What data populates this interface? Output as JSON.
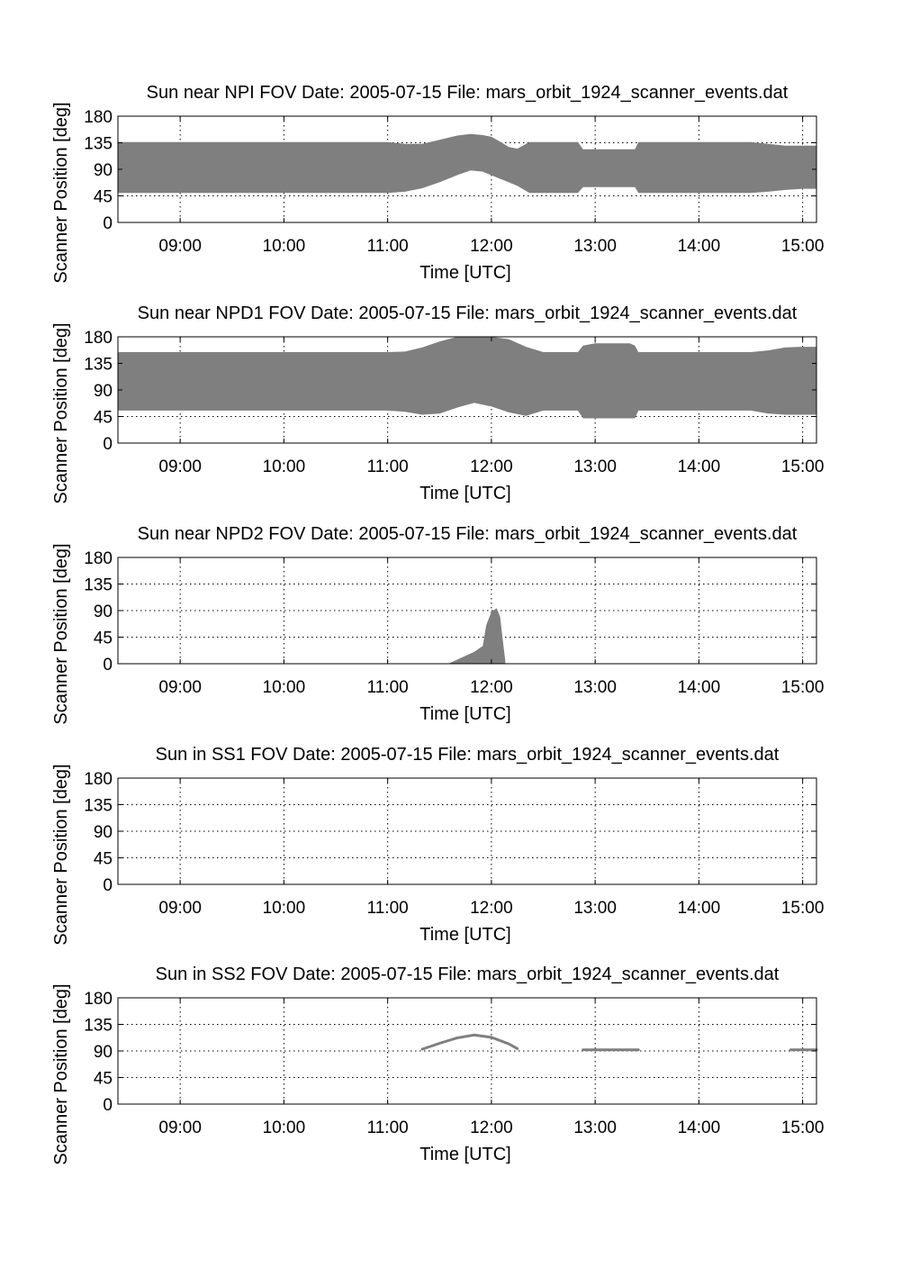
{
  "chart_data": [
    {
      "type": "area",
      "title": "Sun near NPI FOV   Date: 2005-07-15   File: mars_orbit_1924_scanner_events.dat",
      "xlabel": "Time [UTC]",
      "ylabel": "Scanner Position [deg]",
      "xlim": [
        "08:24",
        "15:08"
      ],
      "ylim": [
        0,
        180
      ],
      "xticks": [
        "09:00",
        "10:00",
        "11:00",
        "12:00",
        "13:00",
        "14:00",
        "15:00"
      ],
      "yticks": [
        "0",
        "45",
        "90",
        "135",
        "180"
      ],
      "grid": true,
      "color": "#7f7f7f",
      "series": [
        {
          "x": [
            "08:24",
            "11:00",
            "11:10",
            "11:20",
            "11:30",
            "11:40",
            "11:48",
            "11:55",
            "12:00",
            "12:05",
            "12:10",
            "12:15",
            "12:22",
            "12:30",
            "12:40",
            "12:50",
            "12:53",
            "13:00",
            "13:20",
            "13:23",
            "13:25",
            "13:30",
            "14:00",
            "14:30",
            "14:40",
            "14:50",
            "15:00",
            "15:08"
          ],
          "low": [
            50,
            50,
            52,
            58,
            68,
            80,
            88,
            86,
            80,
            74,
            68,
            62,
            50,
            50,
            50,
            50,
            60,
            60,
            60,
            60,
            50,
            50,
            50,
            50,
            52,
            55,
            57,
            57
          ],
          "high": [
            136,
            136,
            133,
            133,
            140,
            147,
            150,
            148,
            145,
            137,
            128,
            125,
            136,
            136,
            136,
            136,
            124,
            124,
            124,
            124,
            136,
            136,
            136,
            136,
            133,
            130,
            130,
            130
          ]
        }
      ]
    },
    {
      "type": "area",
      "title": "Sun near NPD1 FOV   Date: 2005-07-15   File: mars_orbit_1924_scanner_events.dat",
      "xlabel": "Time [UTC]",
      "ylabel": "Scanner Position [deg]",
      "xlim": [
        "08:24",
        "15:08"
      ],
      "ylim": [
        0,
        180
      ],
      "xticks": [
        "09:00",
        "10:00",
        "11:00",
        "12:00",
        "13:00",
        "14:00",
        "15:00"
      ],
      "yticks": [
        "0",
        "45",
        "90",
        "135",
        "180"
      ],
      "grid": true,
      "color": "#7f7f7f",
      "series": [
        {
          "x": [
            "08:24",
            "11:00",
            "11:10",
            "11:20",
            "11:30",
            "11:40",
            "11:50",
            "12:00",
            "12:10",
            "12:20",
            "12:30",
            "12:40",
            "12:50",
            "12:53",
            "13:00",
            "13:20",
            "13:23",
            "13:25",
            "13:30",
            "14:00",
            "14:30",
            "14:40",
            "14:50",
            "15:00",
            "15:08"
          ],
          "low": [
            55,
            55,
            53,
            48,
            50,
            60,
            68,
            62,
            52,
            46,
            55,
            55,
            55,
            42,
            42,
            42,
            42,
            55,
            55,
            55,
            55,
            50,
            48,
            48,
            48
          ],
          "high": [
            154,
            154,
            155,
            162,
            172,
            180,
            180,
            180,
            176,
            163,
            154,
            154,
            154,
            165,
            169,
            169,
            165,
            154,
            154,
            154,
            154,
            157,
            162,
            163,
            163
          ]
        }
      ]
    },
    {
      "type": "area",
      "title": "Sun near NPD2 FOV   Date: 2005-07-15   File: mars_orbit_1924_scanner_events.dat",
      "xlabel": "Time [UTC]",
      "ylabel": "Scanner Position [deg]",
      "xlim": [
        "08:24",
        "15:08"
      ],
      "ylim": [
        0,
        180
      ],
      "xticks": [
        "09:00",
        "10:00",
        "11:00",
        "12:00",
        "13:00",
        "14:00",
        "15:00"
      ],
      "yticks": [
        "0",
        "45",
        "90",
        "135",
        "180"
      ],
      "grid": true,
      "color": "#7f7f7f",
      "series": [
        {
          "x": [
            "11:35",
            "11:50",
            "11:55",
            "11:57",
            "12:00",
            "12:03",
            "12:05",
            "12:07",
            "12:08",
            "12:08"
          ],
          "low": [
            0,
            0,
            0,
            0,
            0,
            0,
            0,
            0,
            0,
            0
          ],
          "high": [
            0,
            20,
            30,
            65,
            88,
            94,
            80,
            30,
            5,
            0
          ]
        }
      ]
    },
    {
      "type": "area",
      "title": "Sun in SS1 FOV   Date: 2005-07-15   File: mars_orbit_1924_scanner_events.dat",
      "xlabel": "Time [UTC]",
      "ylabel": "Scanner Position [deg]",
      "xlim": [
        "08:24",
        "15:08"
      ],
      "ylim": [
        0,
        180
      ],
      "xticks": [
        "09:00",
        "10:00",
        "11:00",
        "12:00",
        "13:00",
        "14:00",
        "15:00"
      ],
      "yticks": [
        "0",
        "45",
        "90",
        "135",
        "180"
      ],
      "grid": true,
      "color": "#7f7f7f",
      "series": []
    },
    {
      "type": "line",
      "title": "Sun in SS2 FOV   Date: 2005-07-15   File: mars_orbit_1924_scanner_events.dat",
      "xlabel": "Time [UTC]",
      "ylabel": "Scanner Position [deg]",
      "xlim": [
        "08:24",
        "15:08"
      ],
      "ylim": [
        0,
        180
      ],
      "xticks": [
        "09:00",
        "10:00",
        "11:00",
        "12:00",
        "13:00",
        "14:00",
        "15:00"
      ],
      "yticks": [
        "0",
        "45",
        "90",
        "135",
        "180"
      ],
      "grid": true,
      "color": "#7f7f7f",
      "series": [
        {
          "x": [
            "11:20",
            "11:30",
            "11:40",
            "11:50",
            "12:00",
            "12:10",
            "12:15"
          ],
          "y": [
            93,
            103,
            112,
            117,
            113,
            102,
            94
          ]
        },
        {
          "x": [
            "12:53",
            "13:25"
          ],
          "y": [
            92,
            92
          ]
        },
        {
          "x": [
            "14:53",
            "15:08"
          ],
          "y": [
            92,
            92
          ]
        }
      ]
    }
  ]
}
